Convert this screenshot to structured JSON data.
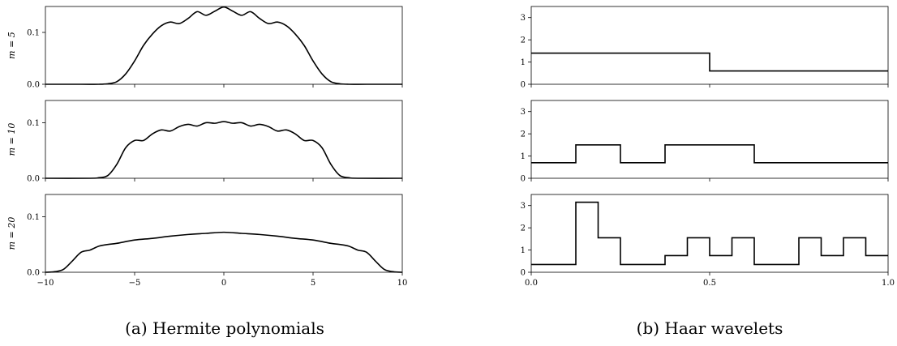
{
  "captions": {
    "left": "(a) Hermite polynomials",
    "right": "(b) Haar wavelets"
  },
  "chart_data": [
    {
      "type": "line",
      "panel": "hermite",
      "title": "",
      "xlabel": "",
      "xlim": [
        -10,
        10
      ],
      "xticks": [
        "−10",
        "−5",
        "0",
        "5",
        "10"
      ],
      "subplots": [
        {
          "ylabel": "m = 5",
          "ylim": [
            0,
            0.15
          ],
          "yticks": [
            "0.0",
            "0.1"
          ],
          "x": [
            -10,
            -8,
            -7,
            -6.5,
            -6,
            -5.5,
            -5,
            -4.5,
            -4,
            -3.5,
            -3,
            -2.5,
            -2,
            -1.5,
            -1,
            -0.5,
            0,
            0.5,
            1,
            1.5,
            2,
            2.5,
            3,
            3.5,
            4,
            4.5,
            5,
            5.5,
            6,
            6.5,
            7,
            8,
            10
          ],
          "y": [
            0,
            0,
            0,
            0.001,
            0.005,
            0.02,
            0.045,
            0.075,
            0.097,
            0.113,
            0.12,
            0.117,
            0.127,
            0.14,
            0.133,
            0.141,
            0.149,
            0.141,
            0.133,
            0.14,
            0.127,
            0.117,
            0.12,
            0.113,
            0.097,
            0.075,
            0.045,
            0.02,
            0.005,
            0.001,
            0,
            0,
            0
          ]
        },
        {
          "ylabel": "m = 10",
          "ylim": [
            0,
            0.14
          ],
          "yticks": [
            "0.0",
            "0.1"
          ],
          "x": [
            -10,
            -7.5,
            -7,
            -6.5,
            -6,
            -5.5,
            -5,
            -4.5,
            -4,
            -3.5,
            -3,
            -2.5,
            -2,
            -1.5,
            -1,
            -0.5,
            0,
            0.5,
            1,
            1.5,
            2,
            2.5,
            3,
            3.5,
            4,
            4.5,
            5,
            5.5,
            6,
            6.5,
            7,
            7.5,
            10
          ],
          "y": [
            0,
            0,
            0.001,
            0.005,
            0.025,
            0.055,
            0.068,
            0.068,
            0.08,
            0.087,
            0.085,
            0.093,
            0.097,
            0.094,
            0.1,
            0.099,
            0.102,
            0.099,
            0.1,
            0.094,
            0.097,
            0.093,
            0.085,
            0.087,
            0.08,
            0.068,
            0.068,
            0.055,
            0.025,
            0.005,
            0.001,
            0,
            0
          ]
        },
        {
          "ylabel": "m = 20",
          "ylim": [
            0,
            0.14
          ],
          "yticks": [
            "0.0",
            "0.1"
          ],
          "x": [
            -10,
            -9.5,
            -9,
            -8.5,
            -8,
            -7.5,
            -7,
            -6.5,
            -6,
            -5,
            -4,
            -3,
            -2,
            -1,
            0,
            1,
            2,
            3,
            4,
            5,
            6,
            6.5,
            7,
            7.5,
            8,
            8.5,
            9,
            9.5,
            10
          ],
          "y": [
            0,
            0.001,
            0.005,
            0.02,
            0.036,
            0.04,
            0.047,
            0.05,
            0.052,
            0.058,
            0.061,
            0.065,
            0.068,
            0.07,
            0.072,
            0.07,
            0.068,
            0.065,
            0.061,
            0.058,
            0.052,
            0.05,
            0.047,
            0.04,
            0.036,
            0.02,
            0.005,
            0.001,
            0
          ]
        }
      ]
    },
    {
      "type": "line",
      "panel": "haar",
      "title": "",
      "xlabel": "",
      "xlim": [
        0,
        1
      ],
      "xticks": [
        "0.0",
        "0.5",
        "1.0"
      ],
      "subplots": [
        {
          "ylim": [
            0,
            3.5
          ],
          "yticks": [
            "0",
            "1",
            "2",
            "3"
          ],
          "steps": {
            "edges": [
              0,
              0.5,
              1
            ],
            "values": [
              1.4,
              0.6
            ]
          }
        },
        {
          "ylim": [
            0,
            3.5
          ],
          "yticks": [
            "0",
            "1",
            "2",
            "3"
          ],
          "steps": {
            "edges": [
              0,
              0.125,
              0.25,
              0.375,
              0.625,
              1
            ],
            "values": [
              0.7,
              1.5,
              0.7,
              1.5,
              0.7
            ]
          }
        },
        {
          "ylim": [
            0,
            3.5
          ],
          "yticks": [
            "0",
            "1",
            "2",
            "3"
          ],
          "steps": {
            "edges": [
              0,
              0.125,
              0.1875,
              0.25,
              0.375,
              0.4375,
              0.5,
              0.5625,
              0.625,
              0.75,
              0.8125,
              0.875,
              0.9375,
              1
            ],
            "values": [
              0.35,
              3.15,
              1.55,
              0.35,
              0.75,
              1.55,
              0.75,
              1.55,
              0.35,
              1.55,
              0.75,
              1.55,
              0.75
            ]
          }
        }
      ]
    }
  ]
}
